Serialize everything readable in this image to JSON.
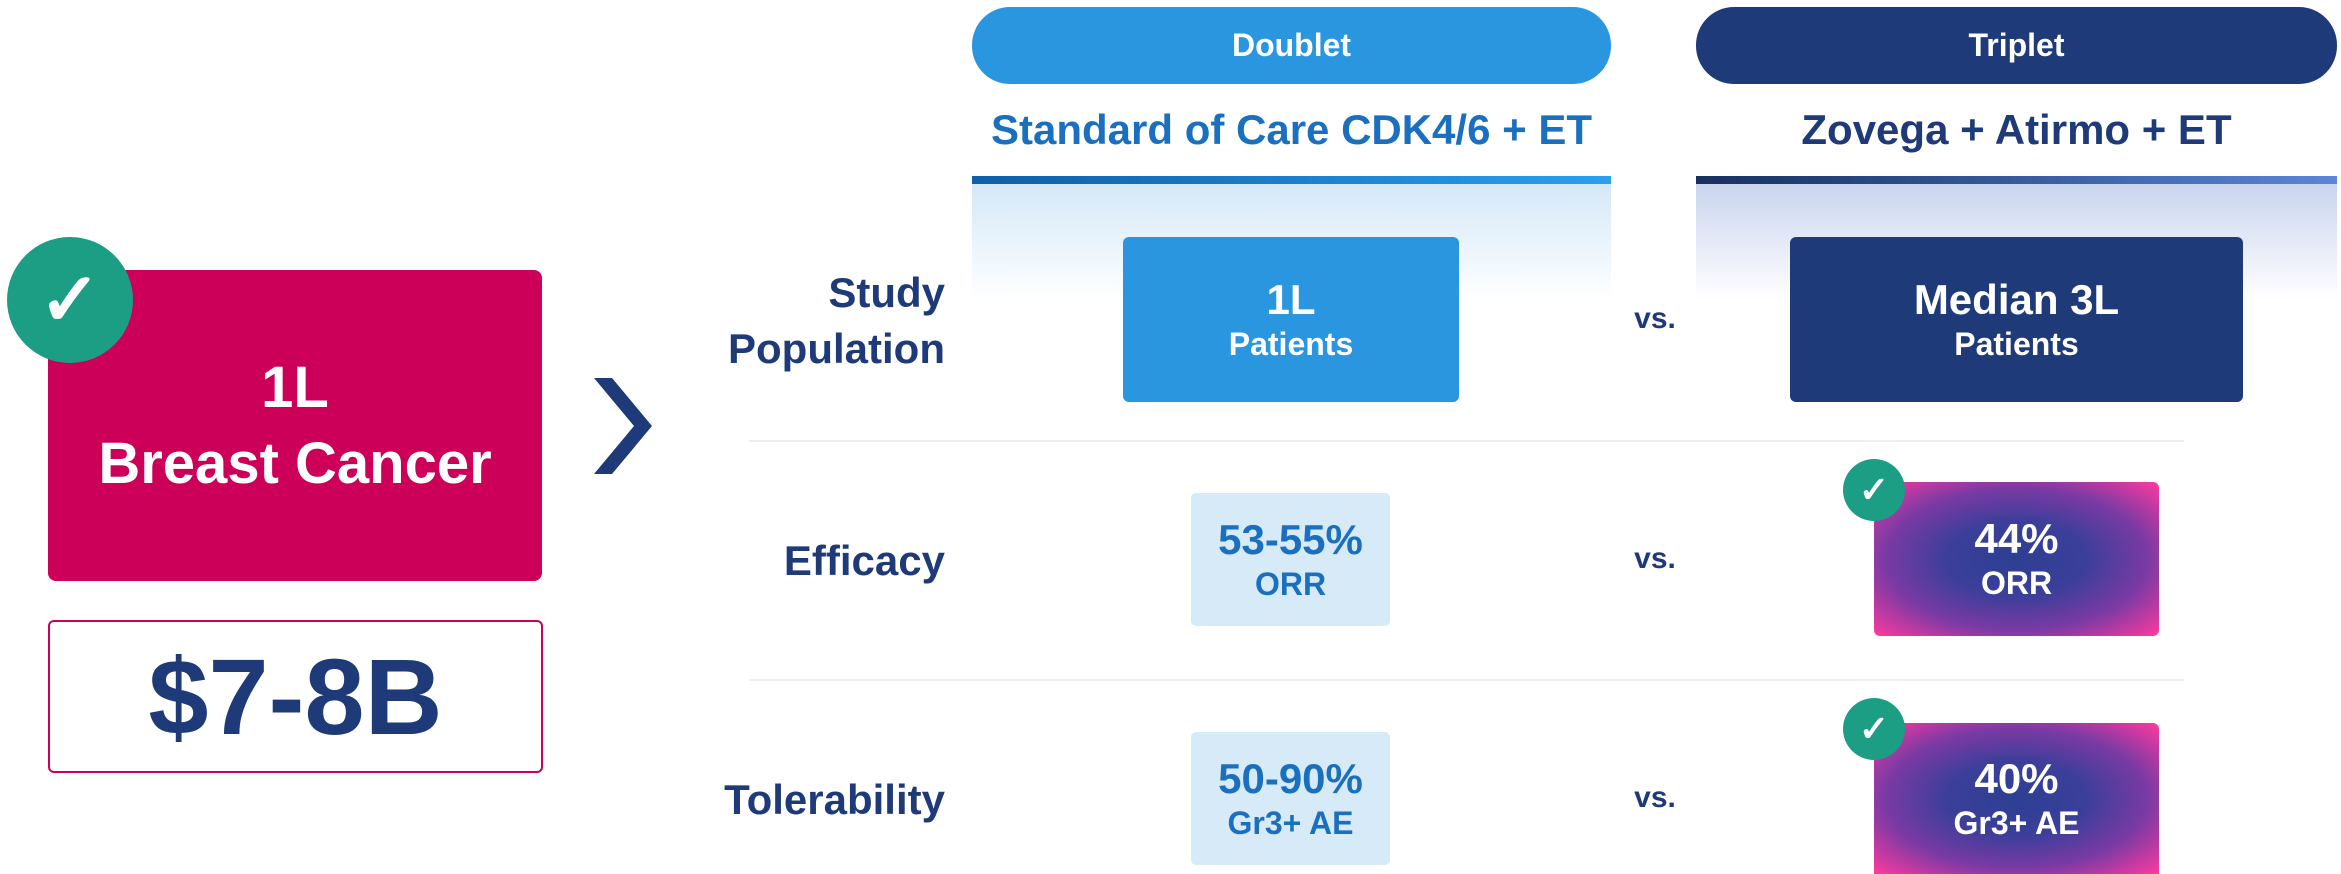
{
  "market": {
    "check": "✓",
    "lines": [
      "1L",
      "Breast Cancer"
    ],
    "size": "$7-8B"
  },
  "columns": [
    {
      "tag": "Doublet",
      "title": "Standard of Care CDK4/6 + ET"
    },
    {
      "tag": "Triplet",
      "title": "Zovega + Atirmo + ET"
    }
  ],
  "rows": [
    {
      "label": [
        "Study",
        "Population"
      ],
      "doublet": [
        "1L",
        "Patients"
      ],
      "vs": "vs.",
      "triplet": [
        "Median 3L",
        "Patients"
      ]
    },
    {
      "label": [
        "Efficacy"
      ],
      "doublet": [
        "53-55%",
        "ORR"
      ],
      "vs": "vs.",
      "triplet": [
        "44%",
        "ORR"
      ],
      "check": "✓"
    },
    {
      "label": [
        "Tolerability"
      ],
      "doublet": [
        "50-90%",
        "Gr3+ AE"
      ],
      "vs": "vs.",
      "triplet": [
        "40%",
        "Gr3+ AE"
      ],
      "check": "✓"
    }
  ]
}
